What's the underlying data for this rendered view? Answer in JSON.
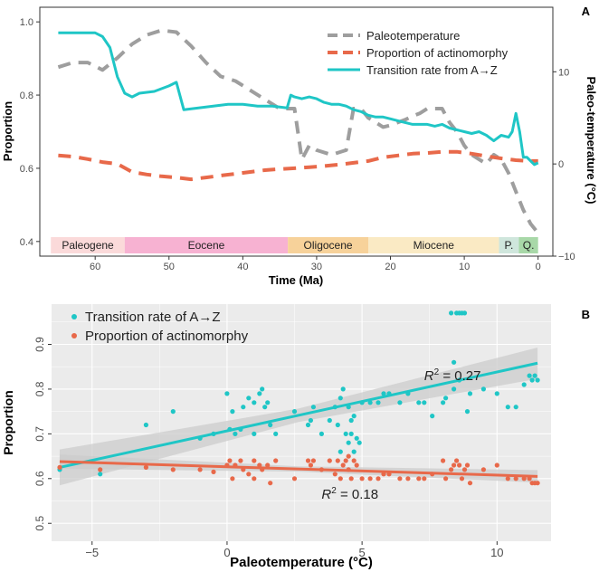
{
  "colors": {
    "temperature": "#9e9e9e",
    "actinomorphy": "#e8694a",
    "transition": "#1fc6c6",
    "epoch_paleogene": "#fbdada",
    "epoch_eocene": "#f7b2d2",
    "epoch_oligocene": "#f7d29a",
    "epoch_miocene": "#faeac4",
    "epoch_pliocene": "#cfe6dc",
    "epoch_quaternary": "#a8d8a8",
    "panel_bg": "#ebebeb",
    "ci_band": "#cccccc"
  },
  "chart_data": [
    {
      "panel_label": "A",
      "type": "line",
      "xlabel": "Time (Ma)",
      "ylabel": "Proportion",
      "ylabel_right": "Paleo-temperature (°C)",
      "xlim": [
        67.5,
        -2
      ],
      "ylim": [
        0.36,
        1.04
      ],
      "ylim_right": [
        -10,
        17
      ],
      "x_ticks": [
        60,
        50,
        40,
        30,
        20,
        10,
        0
      ],
      "y_ticks": [
        "0.4",
        "0.6",
        "0.8",
        "1.0"
      ],
      "y_right_ticks": [
        -10,
        0,
        10
      ],
      "legend": [
        "Paleotemperature",
        "Proportion of actinomorphy",
        "Transition rate from A→Z"
      ],
      "legend_position": "top-right",
      "epochs": [
        {
          "name": "Paleogene",
          "start": 66,
          "end": 56
        },
        {
          "name": "Eocene",
          "start": 56,
          "end": 33.9
        },
        {
          "name": "Oligocene",
          "start": 33.9,
          "end": 23
        },
        {
          "name": "Miocene",
          "start": 23,
          "end": 5.3
        },
        {
          "name": "P.",
          "start": 5.3,
          "end": 2.6
        },
        {
          "name": "Q.",
          "start": 2.6,
          "end": 0
        }
      ],
      "series": [
        {
          "name": "Paleotemperature",
          "axis": "right",
          "style": "dashed",
          "x": [
            65,
            63,
            61,
            59,
            57,
            55,
            53,
            51,
            49,
            47,
            45,
            43,
            41,
            39,
            37,
            35,
            33,
            32,
            31,
            30,
            28,
            26,
            25,
            24,
            23,
            22,
            21,
            20,
            19,
            18,
            17,
            16,
            15,
            14,
            13,
            12,
            11,
            10,
            9,
            8,
            7,
            6,
            5,
            4,
            3,
            2,
            1,
            0
          ],
          "y": [
            10.5,
            11.0,
            11.0,
            10.2,
            11.5,
            13.0,
            14.0,
            14.5,
            14.3,
            12.8,
            11.0,
            9.5,
            9.0,
            8.0,
            7.0,
            6.0,
            6.0,
            0.5,
            2.0,
            1.5,
            1.0,
            1.5,
            6.0,
            6.0,
            5.0,
            4.5,
            4.0,
            4.2,
            4.5,
            4.8,
            5.2,
            5.5,
            6.0,
            6.0,
            6.0,
            4.5,
            3.5,
            2.0,
            1.0,
            0.5,
            0.0,
            1.0,
            0.5,
            -1.0,
            -3.0,
            -5.0,
            -6.5,
            -7.5
          ]
        },
        {
          "name": "Proportion of actinomorphy",
          "axis": "left",
          "style": "dashed",
          "x": [
            65,
            63,
            61,
            59,
            57,
            55,
            53,
            51,
            49,
            47,
            45,
            43,
            41,
            39,
            37,
            35,
            33,
            31,
            29,
            27,
            25,
            23,
            21,
            19,
            17,
            15,
            13,
            11,
            9,
            7,
            5,
            3,
            1,
            0
          ],
          "y": [
            0.635,
            0.632,
            0.625,
            0.617,
            0.612,
            0.59,
            0.583,
            0.578,
            0.575,
            0.57,
            0.575,
            0.58,
            0.585,
            0.59,
            0.595,
            0.598,
            0.6,
            0.603,
            0.606,
            0.61,
            0.615,
            0.62,
            0.63,
            0.635,
            0.64,
            0.642,
            0.645,
            0.645,
            0.64,
            0.633,
            0.627,
            0.622,
            0.62,
            0.62
          ]
        },
        {
          "name": "Transition rate from A→Z",
          "axis": "left",
          "style": "solid",
          "x": [
            65,
            64,
            62,
            60,
            59,
            58,
            57,
            56,
            55,
            54,
            52,
            50,
            49,
            48,
            46,
            44,
            42,
            40,
            38,
            36,
            34,
            33.5,
            33,
            32,
            31,
            30,
            29,
            28,
            27,
            26,
            25,
            24,
            23,
            22,
            21,
            20,
            19,
            18,
            17,
            16,
            15,
            14,
            13,
            12,
            11,
            10,
            9,
            8,
            7,
            6,
            5,
            4,
            3.5,
            3,
            2.5,
            2,
            1.5,
            1,
            0.5,
            0
          ],
          "y": [
            0.97,
            0.97,
            0.97,
            0.97,
            0.96,
            0.93,
            0.85,
            0.805,
            0.795,
            0.805,
            0.81,
            0.825,
            0.835,
            0.76,
            0.765,
            0.77,
            0.775,
            0.775,
            0.77,
            0.77,
            0.765,
            0.8,
            0.795,
            0.79,
            0.795,
            0.79,
            0.78,
            0.775,
            0.775,
            0.77,
            0.76,
            0.755,
            0.745,
            0.74,
            0.74,
            0.735,
            0.73,
            0.725,
            0.72,
            0.72,
            0.72,
            0.715,
            0.72,
            0.71,
            0.705,
            0.7,
            0.695,
            0.7,
            0.69,
            0.675,
            0.69,
            0.685,
            0.7,
            0.75,
            0.7,
            0.63,
            0.63,
            0.62,
            0.61,
            0.615
          ]
        }
      ]
    },
    {
      "panel_label": "B",
      "type": "scatter",
      "xlabel": "Paleotemperature (°C)",
      "ylabel": "Proportion",
      "xlim": [
        -6.5,
        12
      ],
      "ylim": [
        0.46,
        0.99
      ],
      "x_ticks": [
        "−5",
        "0",
        "5",
        "10"
      ],
      "y_ticks": [
        "0.5",
        "0.6",
        "0.7",
        "0.8",
        "0.9"
      ],
      "grid": true,
      "legend": [
        "Transition rate of A→Z",
        "Proportion of actinomorphy"
      ],
      "legend_position": "top-left",
      "annotations": [
        {
          "text_prefix": "R",
          "superscript": "2",
          "text_suffix": " = 0.27",
          "x": 7.3,
          "y": 0.82
        },
        {
          "text_prefix": "R",
          "superscript": "2",
          "text_suffix": " = 0.18",
          "x": 3.5,
          "y": 0.555
        }
      ],
      "series": [
        {
          "name": "Transition rate of A→Z",
          "fit": {
            "x": [
              -6.2,
              11.5
            ],
            "y": [
              0.625,
              0.858
            ],
            "ci": 0.025
          },
          "x": [
            -6.2,
            -4.7,
            -3.0,
            -2.0,
            -1.0,
            -0.5,
            0.0,
            0.1,
            0.2,
            0.3,
            0.5,
            0.6,
            0.8,
            1.0,
            1.0,
            1.2,
            1.3,
            1.4,
            1.5,
            1.6,
            1.8,
            2.5,
            3.0,
            3.1,
            3.2,
            3.5,
            3.8,
            4.0,
            4.1,
            4.2,
            4.2,
            4.3,
            4.4,
            4.5,
            4.5,
            4.6,
            4.6,
            4.7,
            4.7,
            4.8,
            4.9,
            5.0,
            5.3,
            5.6,
            5.8,
            6.0,
            6.4,
            6.7,
            7.1,
            7.3,
            7.6,
            8.0,
            8.1,
            8.3,
            8.4,
            8.4,
            8.5,
            8.6,
            8.6,
            8.7,
            8.8,
            8.9,
            9.0,
            9.5,
            10.0,
            10.4,
            10.7,
            11.0,
            11.2,
            11.3,
            11.4,
            11.5
          ],
          "y": [
            0.62,
            0.61,
            0.72,
            0.75,
            0.69,
            0.7,
            0.79,
            0.71,
            0.75,
            0.7,
            0.71,
            0.76,
            0.78,
            0.7,
            0.77,
            0.79,
            0.8,
            0.76,
            0.77,
            0.72,
            0.7,
            0.75,
            0.72,
            0.73,
            0.76,
            0.7,
            0.73,
            0.76,
            0.72,
            0.66,
            0.78,
            0.8,
            0.7,
            0.68,
            0.76,
            0.7,
            0.73,
            0.74,
            0.66,
            0.69,
            0.68,
            0.77,
            0.77,
            0.77,
            0.79,
            0.79,
            0.77,
            0.79,
            0.77,
            0.77,
            0.74,
            0.77,
            0.78,
            0.97,
            0.8,
            0.86,
            0.97,
            0.82,
            0.97,
            0.97,
            0.97,
            0.75,
            0.79,
            0.8,
            0.79,
            0.76,
            0.76,
            0.81,
            0.83,
            0.82,
            0.83,
            0.82
          ]
        },
        {
          "name": "Proportion of actinomorphy",
          "fit": {
            "x": [
              -6.2,
              11.5
            ],
            "y": [
              0.638,
              0.605
            ],
            "ci": 0.01
          },
          "x": [
            -6.2,
            -4.7,
            -3.0,
            -2.0,
            -1.0,
            -0.5,
            0.0,
            0.1,
            0.2,
            0.3,
            0.5,
            0.6,
            0.8,
            1.0,
            1.0,
            1.2,
            1.3,
            1.5,
            1.6,
            1.8,
            2.5,
            3.0,
            3.1,
            3.2,
            3.5,
            3.8,
            4.0,
            4.1,
            4.2,
            4.3,
            4.4,
            4.5,
            4.5,
            4.6,
            4.7,
            4.8,
            5.0,
            5.3,
            5.6,
            5.8,
            6.0,
            6.4,
            6.7,
            7.1,
            7.3,
            7.6,
            8.0,
            8.1,
            8.3,
            8.4,
            8.5,
            8.6,
            8.7,
            8.8,
            8.9,
            9.0,
            9.5,
            10.0,
            10.4,
            10.7,
            11.0,
            11.2,
            11.3,
            11.4,
            11.5
          ],
          "y": [
            0.625,
            0.62,
            0.625,
            0.62,
            0.62,
            0.615,
            0.63,
            0.64,
            0.6,
            0.63,
            0.64,
            0.62,
            0.61,
            0.64,
            0.6,
            0.63,
            0.62,
            0.63,
            0.59,
            0.64,
            0.6,
            0.64,
            0.63,
            0.64,
            0.62,
            0.64,
            0.61,
            0.64,
            0.6,
            0.63,
            0.64,
            0.65,
            0.62,
            0.6,
            0.64,
            0.63,
            0.6,
            0.6,
            0.6,
            0.61,
            0.61,
            0.6,
            0.6,
            0.6,
            0.6,
            0.61,
            0.64,
            0.6,
            0.62,
            0.63,
            0.64,
            0.63,
            0.6,
            0.62,
            0.63,
            0.59,
            0.62,
            0.63,
            0.6,
            0.6,
            0.6,
            0.6,
            0.59,
            0.59,
            0.59
          ]
        }
      ]
    }
  ]
}
